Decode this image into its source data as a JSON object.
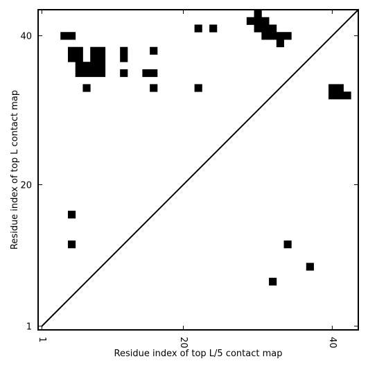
{
  "chart_data": {
    "type": "heatmap",
    "title": "",
    "xlabel": "Residue index of top L/5 contact map",
    "ylabel": "Residue index of top L contact map",
    "xlim": [
      0.5,
      43.5
    ],
    "ylim": [
      0.5,
      43.5
    ],
    "x_ticks": [
      1,
      20,
      40
    ],
    "y_ticks": [
      1,
      20,
      40
    ],
    "grid": false,
    "diagonal_line": true,
    "cell_color": "#000000",
    "background_color": "#ffffff",
    "cells": [
      [
        30,
        43
      ],
      [
        30,
        42
      ],
      [
        29,
        42
      ],
      [
        31,
        42
      ],
      [
        30,
        41
      ],
      [
        31,
        41
      ],
      [
        32,
        41
      ],
      [
        22,
        41
      ],
      [
        24,
        41
      ],
      [
        4,
        40
      ],
      [
        5,
        40
      ],
      [
        31,
        40
      ],
      [
        32,
        40
      ],
      [
        33,
        40
      ],
      [
        34,
        40
      ],
      [
        33,
        39
      ],
      [
        5,
        38
      ],
      [
        6,
        38
      ],
      [
        8,
        38
      ],
      [
        9,
        38
      ],
      [
        12,
        38
      ],
      [
        16,
        38
      ],
      [
        5,
        37
      ],
      [
        6,
        37
      ],
      [
        8,
        37
      ],
      [
        9,
        37
      ],
      [
        12,
        37
      ],
      [
        6,
        36
      ],
      [
        7,
        36
      ],
      [
        8,
        36
      ],
      [
        9,
        36
      ],
      [
        6,
        35
      ],
      [
        7,
        35
      ],
      [
        8,
        35
      ],
      [
        9,
        35
      ],
      [
        12,
        35
      ],
      [
        15,
        35
      ],
      [
        16,
        35
      ],
      [
        7,
        33
      ],
      [
        16,
        33
      ],
      [
        22,
        33
      ],
      [
        40,
        33
      ],
      [
        41,
        33
      ],
      [
        40,
        32
      ],
      [
        41,
        32
      ],
      [
        42,
        32
      ],
      [
        5,
        16
      ],
      [
        5,
        12
      ],
      [
        34,
        12
      ],
      [
        37,
        9
      ],
      [
        32,
        7
      ]
    ]
  }
}
